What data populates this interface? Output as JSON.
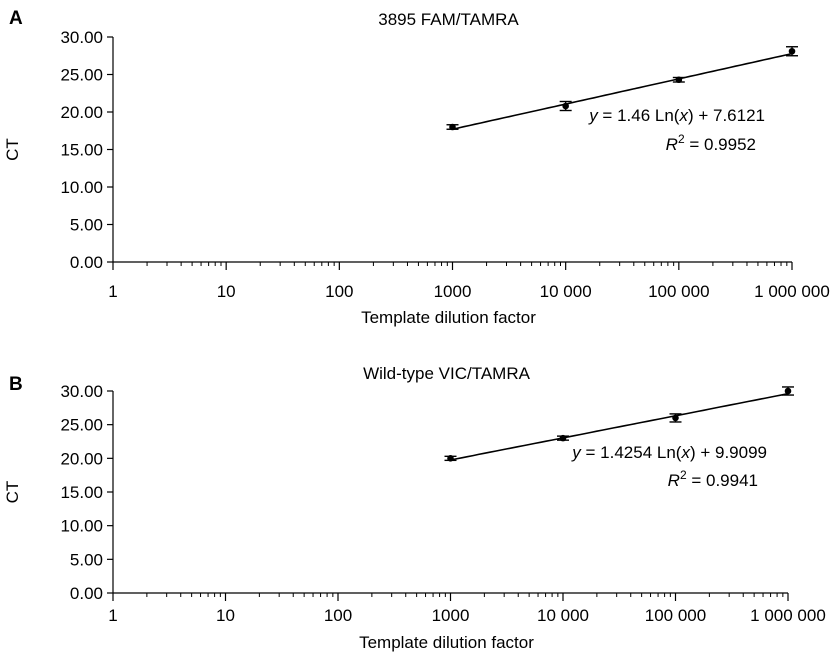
{
  "chart_data": [
    {
      "type": "scatter",
      "panel_label": "A",
      "title": "3895 FAM/TAMRA",
      "xlabel": "Template dilution factor",
      "ylabel": "CT",
      "x_scale": "log",
      "xlim": [
        1,
        1000000
      ],
      "ylim": [
        0,
        30
      ],
      "x_ticks": [
        1,
        10,
        100,
        1000,
        10000,
        100000,
        1000000
      ],
      "x_tick_labels": [
        "1",
        "10",
        "100",
        "1000",
        "10 000",
        "100 000",
        "1 000 000"
      ],
      "y_ticks": [
        0,
        5,
        10,
        15,
        20,
        25,
        30
      ],
      "y_tick_labels": [
        "0.00",
        "5.00",
        "10.00",
        "15.00",
        "20.00",
        "25.00",
        "30.00"
      ],
      "grid": false,
      "series": [
        {
          "x": [
            1000,
            10000,
            100000,
            1000000
          ],
          "y": [
            18.0,
            20.8,
            24.3,
            28.1
          ],
          "error": [
            0.3,
            0.6,
            0.3,
            0.6
          ]
        }
      ],
      "trendline": {
        "slope": 1.46,
        "intercept": 7.6121,
        "x_range": [
          1000,
          1000000
        ],
        "equation_label": {
          "prefix": "y",
          "mid": " = 1.46 Ln(",
          "var": "x",
          "suffix": ") + 7.6121"
        },
        "r2_label": {
          "prefix": "R",
          "sup": "2",
          "suffix": " = 0.9952"
        }
      }
    },
    {
      "type": "scatter",
      "panel_label": "B",
      "title": "Wild-type VIC/TAMRA",
      "xlabel": "Template dilution factor",
      "ylabel": "CT",
      "x_scale": "log",
      "xlim": [
        1,
        1000000
      ],
      "ylim": [
        0,
        30
      ],
      "x_ticks": [
        1,
        10,
        100,
        1000,
        10000,
        100000,
        1000000
      ],
      "x_tick_labels": [
        "1",
        "10",
        "100",
        "1000",
        "10 000",
        "100 000",
        "1 000 000"
      ],
      "y_ticks": [
        0,
        5,
        10,
        15,
        20,
        25,
        30
      ],
      "y_tick_labels": [
        "0.00",
        "5.00",
        "10.00",
        "15.00",
        "20.00",
        "25.00",
        "30.00"
      ],
      "grid": false,
      "series": [
        {
          "x": [
            1000,
            10000,
            100000,
            1000000
          ],
          "y": [
            20.0,
            23.0,
            26.0,
            30.0
          ],
          "error": [
            0.3,
            0.3,
            0.6,
            0.6
          ]
        }
      ],
      "trendline": {
        "slope": 1.4254,
        "intercept": 9.9099,
        "x_range": [
          1000,
          1000000
        ],
        "equation_label": {
          "prefix": "y",
          "mid": " = 1.4254 Ln(",
          "var": "x",
          "suffix": ") + 9.9099"
        },
        "r2_label": {
          "prefix": "R",
          "sup": "2",
          "suffix": " = 0.9941"
        }
      }
    }
  ]
}
